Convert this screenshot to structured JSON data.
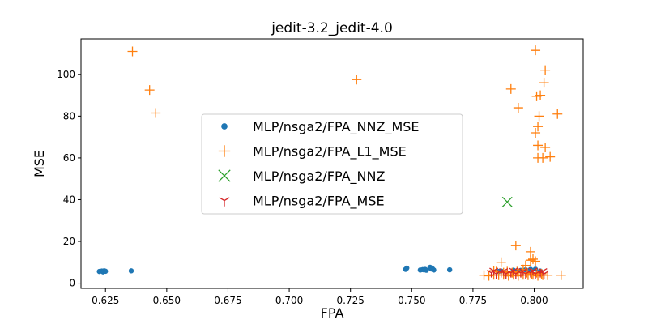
{
  "chart_data": {
    "type": "scatter",
    "title": "jedit-3.2_jedit-4.0",
    "xlabel": "FPA",
    "ylabel": "MSE",
    "xlim": [
      0.615,
      0.82
    ],
    "ylim": [
      -2.5,
      117
    ],
    "xticks": [
      0.625,
      0.65,
      0.675,
      0.7,
      0.725,
      0.75,
      0.775,
      0.8
    ],
    "xtick_labels": [
      "0.625",
      "0.650",
      "0.675",
      "0.700",
      "0.725",
      "0.750",
      "0.775",
      "0.800"
    ],
    "yticks": [
      0,
      20,
      40,
      60,
      80,
      100
    ],
    "ytick_labels": [
      "0",
      "20",
      "40",
      "60",
      "80",
      "100"
    ],
    "grid": false,
    "legend_position": "center",
    "series": [
      {
        "name": "MLP/nsga2/FPA_NNZ_MSE",
        "marker": "dot",
        "color": "#1f77b4",
        "points": [
          [
            0.6225,
            5.6
          ],
          [
            0.6235,
            5.8
          ],
          [
            0.624,
            5.4
          ],
          [
            0.6245,
            5.9
          ],
          [
            0.625,
            5.7
          ],
          [
            0.6355,
            5.9
          ],
          [
            0.7475,
            6.6
          ],
          [
            0.748,
            7.2
          ],
          [
            0.7535,
            6.3
          ],
          [
            0.7545,
            6.5
          ],
          [
            0.755,
            6.4
          ],
          [
            0.7555,
            6.6
          ],
          [
            0.756,
            6.2
          ],
          [
            0.7575,
            7.6
          ],
          [
            0.758,
            6.8
          ],
          [
            0.7585,
            6.9
          ],
          [
            0.759,
            6.3
          ],
          [
            0.7655,
            6.4
          ],
          [
            0.7855,
            5.6
          ],
          [
            0.7865,
            5.8
          ],
          [
            0.7915,
            6.2
          ],
          [
            0.793,
            5.9
          ],
          [
            0.7945,
            6.1
          ],
          [
            0.7965,
            6.4
          ],
          [
            0.7985,
            6.6
          ],
          [
            0.8005,
            6.7
          ],
          [
            0.8025,
            5.8
          ]
        ]
      },
      {
        "name": "MLP/nsga2/FPA_L1_MSE",
        "marker": "plus",
        "color": "#ff7f0e",
        "points": [
          [
            0.636,
            111
          ],
          [
            0.643,
            92.5
          ],
          [
            0.6455,
            81.5
          ],
          [
            0.7275,
            97.5
          ],
          [
            0.8005,
            111.5
          ],
          [
            0.8045,
            102
          ],
          [
            0.7905,
            93
          ],
          [
            0.804,
            96
          ],
          [
            0.8025,
            90
          ],
          [
            0.801,
            89.5
          ],
          [
            0.7935,
            84
          ],
          [
            0.8095,
            81
          ],
          [
            0.802,
            80
          ],
          [
            0.8015,
            75
          ],
          [
            0.8005,
            72
          ],
          [
            0.8015,
            66
          ],
          [
            0.8045,
            65
          ],
          [
            0.8065,
            60.5
          ],
          [
            0.8015,
            60
          ],
          [
            0.8035,
            60
          ],
          [
            0.7925,
            18
          ],
          [
            0.7985,
            15
          ],
          [
            0.7995,
            11.5
          ],
          [
            0.8005,
            10.5
          ],
          [
            0.7985,
            11
          ],
          [
            0.7865,
            10
          ],
          [
            0.7965,
            8.5
          ],
          [
            0.7955,
            6.5
          ],
          [
            0.7835,
            6
          ],
          [
            0.7845,
            5.5
          ],
          [
            0.7875,
            5
          ],
          [
            0.789,
            5.5
          ],
          [
            0.791,
            5
          ],
          [
            0.793,
            5.5
          ],
          [
            0.795,
            5
          ],
          [
            0.797,
            5
          ],
          [
            0.799,
            4.5
          ],
          [
            0.801,
            5
          ],
          [
            0.803,
            4.5
          ],
          [
            0.7795,
            3.8
          ],
          [
            0.7815,
            3.5
          ],
          [
            0.7835,
            4
          ],
          [
            0.7855,
            3.8
          ],
          [
            0.7875,
            4
          ],
          [
            0.7895,
            3.5
          ],
          [
            0.7915,
            4
          ],
          [
            0.7935,
            3.5
          ],
          [
            0.7955,
            4
          ],
          [
            0.7975,
            3.8
          ],
          [
            0.7995,
            4
          ],
          [
            0.8015,
            3.5
          ],
          [
            0.8035,
            3.8
          ],
          [
            0.8055,
            3.8
          ],
          [
            0.811,
            3.8
          ]
        ]
      },
      {
        "name": "MLP/nsga2/FPA_NNZ",
        "marker": "x",
        "color": "#2ca02c",
        "points": [
          [
            0.789,
            38.9
          ]
        ]
      },
      {
        "name": "MLP/nsga2/FPA_MSE",
        "marker": "tri",
        "color": "#d62728",
        "points": [
          [
            0.7825,
            5
          ],
          [
            0.7845,
            4.5
          ],
          [
            0.7865,
            5
          ],
          [
            0.7885,
            4.5
          ],
          [
            0.7905,
            5
          ],
          [
            0.7925,
            4.5
          ],
          [
            0.7945,
            5
          ],
          [
            0.7965,
            4.5
          ],
          [
            0.7985,
            5
          ],
          [
            0.8005,
            4.5
          ],
          [
            0.8025,
            5
          ],
          [
            0.804,
            4.5
          ],
          [
            0.7835,
            6
          ],
          [
            0.7875,
            5.8
          ],
          [
            0.7915,
            6
          ],
          [
            0.7955,
            5.8
          ],
          [
            0.7995,
            6
          ],
          [
            0.8035,
            5.8
          ]
        ]
      }
    ]
  }
}
